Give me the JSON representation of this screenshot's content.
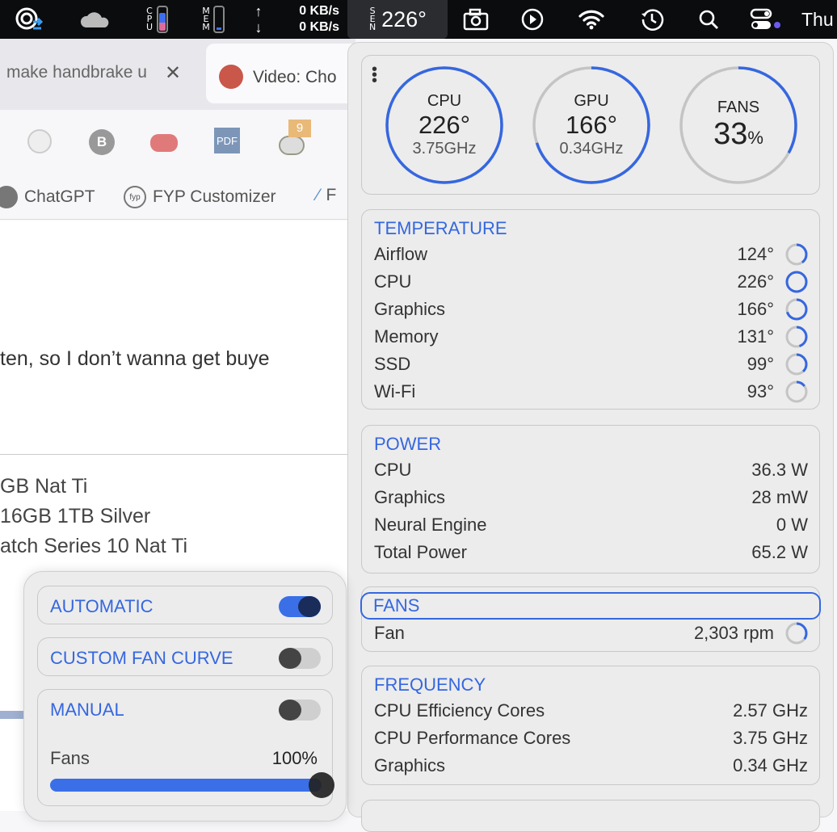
{
  "menubar": {
    "cpu_label": "CPU",
    "mem_label": "MEM",
    "cpu_usage": 0.75,
    "mem_usage": 0.1,
    "net_up": "0 KB/s",
    "net_down": "0 KB/s",
    "sensor_label": "SEN",
    "sensor_value": "226°",
    "clock": "Thu",
    "icons": [
      "creative-cloud-sync-icon",
      "onedrive-icon",
      "camera-icon",
      "play-icon",
      "wifi-icon",
      "time-machine-icon",
      "search-icon",
      "control-center-icon"
    ]
  },
  "browser": {
    "tabs": [
      {
        "label": "make handbrake u"
      },
      {
        "label": "Video: Cho"
      }
    ],
    "extension_badge": "9",
    "extensions": [
      "B",
      "PDF"
    ],
    "bookmarks": [
      {
        "label": "ChatGPT"
      },
      {
        "label": "FYP Customizer"
      },
      {
        "label": "F"
      }
    ],
    "text": [
      "ten, so I don’t wanna get buye",
      "GB Nat Ti",
      "16GB 1TB Silver",
      "atch Series 10 Nat Ti"
    ]
  },
  "gauges": [
    {
      "label": "CPU",
      "value": "226°",
      "sub": "3.75GHz",
      "fill": 1.0
    },
    {
      "label": "GPU",
      "value": "166°",
      "sub": "0.34GHz",
      "fill": 0.7
    },
    {
      "label": "FANS",
      "value": "33",
      "unit": "%",
      "fill": 0.33
    }
  ],
  "temperature": {
    "title": "TEMPERATURE",
    "rows": [
      {
        "label": "Airflow",
        "value": "124°",
        "fill": 0.4
      },
      {
        "label": "CPU",
        "value": "226°",
        "fill": 1.0
      },
      {
        "label": "Graphics",
        "value": "166°",
        "fill": 0.7
      },
      {
        "label": "Memory",
        "value": "131°",
        "fill": 0.45
      },
      {
        "label": "SSD",
        "value": "99°",
        "fill": 0.38
      },
      {
        "label": "Wi-Fi",
        "value": "93°",
        "fill": 0.15
      }
    ]
  },
  "power": {
    "title": "POWER",
    "rows": [
      {
        "label": "CPU",
        "value": "36.3 W"
      },
      {
        "label": "Graphics",
        "value": "28 mW"
      },
      {
        "label": "Neural Engine",
        "value": "0 W"
      },
      {
        "label": "Total Power",
        "value": "65.2 W"
      }
    ]
  },
  "fans": {
    "title": "FANS",
    "rows": [
      {
        "label": "Fan",
        "value": "2,303 rpm",
        "fill": 0.35
      }
    ]
  },
  "frequency": {
    "title": "FREQUENCY",
    "rows": [
      {
        "label": "CPU Efficiency Cores",
        "value": "2.57 GHz"
      },
      {
        "label": "CPU Performance Cores",
        "value": "3.75 GHz"
      },
      {
        "label": "Graphics",
        "value": "0.34 GHz"
      }
    ]
  },
  "fan_control": {
    "automatic": {
      "label": "AUTOMATIC",
      "on": true
    },
    "custom": {
      "label": "CUSTOM FAN CURVE",
      "on": false
    },
    "manual": {
      "label": "MANUAL",
      "on": false,
      "slider_label": "Fans",
      "slider_value": "100%",
      "level": 1.0
    }
  },
  "colors": {
    "accent": "#3567e0",
    "ring_track": "#c4c4c4"
  }
}
